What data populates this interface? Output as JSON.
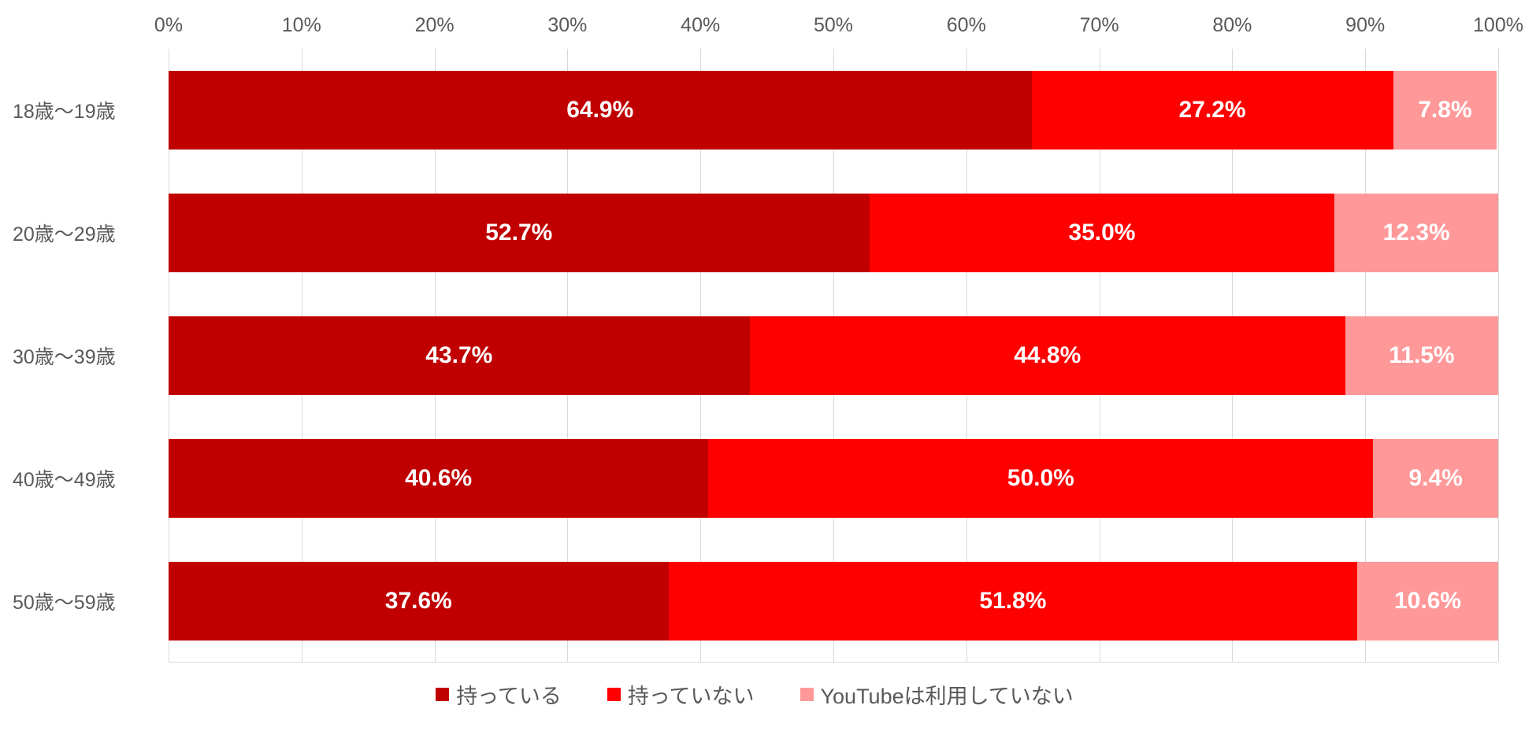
{
  "chart_data": {
    "type": "bar",
    "orientation": "horizontal",
    "stacked": true,
    "stack_total": 100,
    "title": "",
    "categories": [
      "18歳〜19歳",
      "20歳〜29歳",
      "30歳〜39歳",
      "40歳〜49歳",
      "50歳〜59歳"
    ],
    "series": [
      {
        "name": "持っている",
        "color": "#C00000",
        "values": [
          64.9,
          52.7,
          43.7,
          40.6,
          37.6
        ],
        "labels": [
          "64.9%",
          "52.7%",
          "43.7%",
          "40.6%",
          "37.6%"
        ]
      },
      {
        "name": "持っていない",
        "color": "#FF0000",
        "values": [
          27.2,
          35.0,
          44.8,
          50.0,
          51.8
        ],
        "labels": [
          "27.2%",
          "35.0%",
          "44.8%",
          "50.0%",
          "51.8%"
        ]
      },
      {
        "name": "YouTubeは利用していない",
        "color": "#FF9999",
        "values": [
          7.8,
          12.3,
          11.5,
          9.4,
          10.6
        ],
        "labels": [
          "7.8%",
          "12.3%",
          "11.5%",
          "9.4%",
          "10.6%"
        ]
      }
    ],
    "x_axis": {
      "position": "top",
      "min": 0,
      "max": 100,
      "tick_step": 10,
      "ticks": [
        "0%",
        "10%",
        "20%",
        "30%",
        "40%",
        "50%",
        "60%",
        "70%",
        "80%",
        "90%",
        "100%"
      ]
    },
    "grid": true,
    "gridline_color": "#D9D9D9",
    "axis_text_color": "#595959",
    "value_label_color": "#FFFFFF",
    "legend_position": "bottom"
  }
}
